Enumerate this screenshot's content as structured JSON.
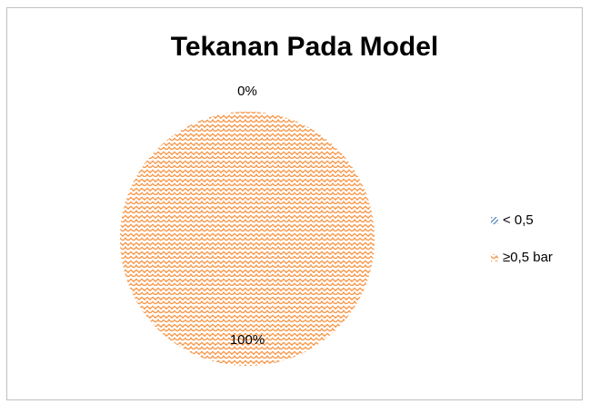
{
  "chart_data": {
    "type": "pie",
    "title": "Tekanan Pada Model",
    "categories": [
      "< 0,5",
      "≥0,5 bar"
    ],
    "values": [
      0,
      100
    ],
    "value_labels": [
      "0%",
      "100%"
    ],
    "colors": [
      "#4f81bd",
      "#f79646"
    ],
    "legend": "right"
  }
}
